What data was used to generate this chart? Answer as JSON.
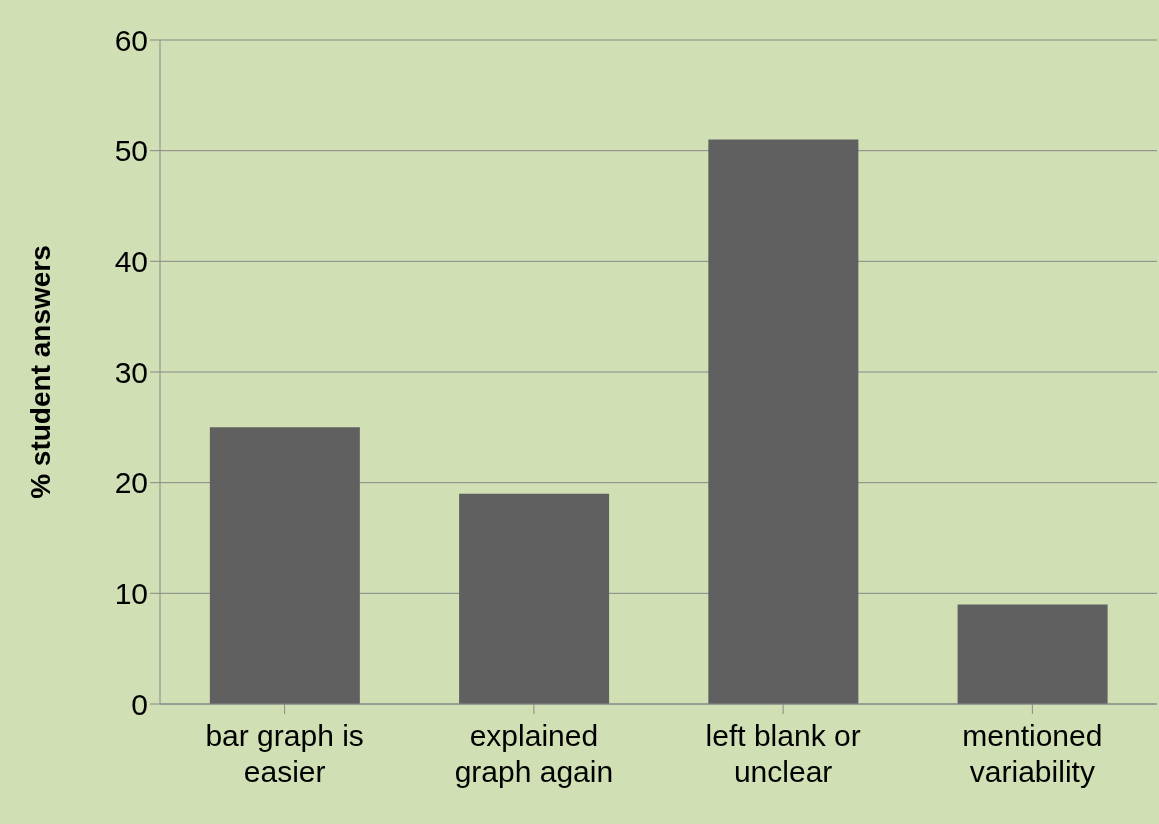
{
  "chart_data": {
    "type": "bar",
    "ylabel": "% student answers",
    "categories": [
      "bar graph is easier",
      "explained graph again",
      "left blank or unclear",
      "mentioned variability"
    ],
    "values": [
      25,
      19,
      51,
      9
    ],
    "color": "#606060",
    "ylim": [
      0,
      60
    ],
    "yticks": [
      0,
      10,
      20,
      30,
      40,
      50,
      60
    ],
    "grid": "y"
  }
}
